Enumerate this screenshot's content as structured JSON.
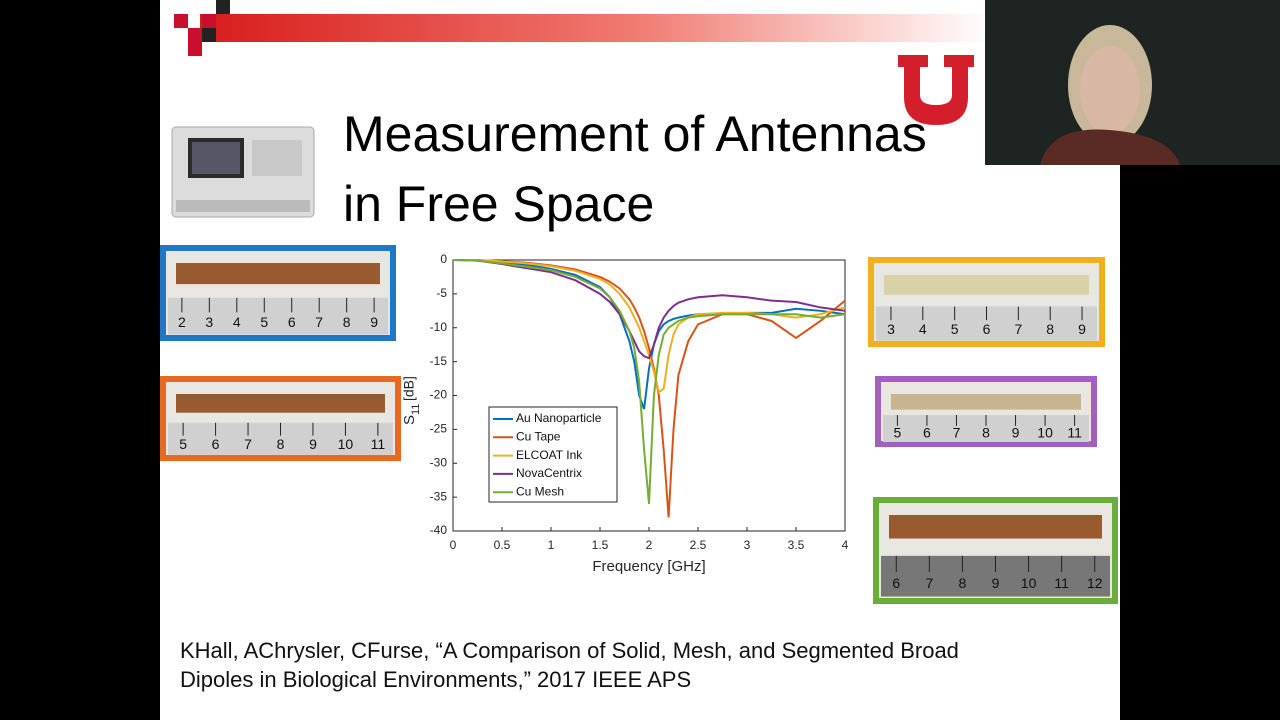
{
  "slide": {
    "title_lines": [
      "Measurement of Antennas",
      "in Free Space"
    ],
    "citation_lines": [
      "KHall, AChrysler, CFurse, “A Comparison of Solid, Mesh, and Segmented Broad",
      "Dipoles in Biological Environments,” 2017 IEEE APS"
    ],
    "photos": [
      {
        "color": "#1f77c8",
        "ruler": [
          "2",
          "3",
          "4",
          "5",
          "6",
          "7",
          "8",
          "9"
        ]
      },
      {
        "color": "#e86a1e",
        "ruler": [
          "5",
          "6",
          "7",
          "8",
          "9",
          "10",
          "11"
        ]
      },
      {
        "color": "#f2b01e",
        "ruler": [
          "3",
          "4",
          "5",
          "6",
          "7",
          "8",
          "9"
        ]
      },
      {
        "color": "#a35fc0",
        "ruler": [
          "5",
          "6",
          "7",
          "8",
          "9",
          "10",
          "11"
        ]
      },
      {
        "color": "#6aae3a",
        "ruler": [
          "6",
          "7",
          "8",
          "9",
          "10",
          "11",
          "12"
        ]
      }
    ]
  },
  "chart_data": {
    "type": "line",
    "xlabel": "Frequency [GHz]",
    "ylabel_parts": [
      "S",
      "11",
      "[dB]"
    ],
    "x": [
      0,
      0.25,
      0.5,
      0.75,
      1,
      1.25,
      1.5,
      1.6,
      1.7,
      1.8,
      1.85,
      1.9,
      1.95,
      2,
      2.05,
      2.1,
      2.15,
      2.2,
      2.25,
      2.3,
      2.4,
      2.5,
      2.75,
      3,
      3.25,
      3.5,
      3.75,
      4
    ],
    "series": [
      {
        "name": "Au Nanoparticle",
        "color": "#0072bd",
        "values": [
          0,
          0,
          -0.3,
          -0.7,
          -1.3,
          -2.2,
          -4,
          -5.5,
          -8,
          -12,
          -15,
          -20,
          -22,
          -16,
          -12.5,
          -10.5,
          -9.5,
          -9,
          -8.7,
          -8.5,
          -8.2,
          -8,
          -8,
          -7.8,
          -7.8,
          -7.2,
          -7.5,
          -8
        ]
      },
      {
        "name": "Cu Tape",
        "color": "#d95319",
        "values": [
          0,
          0,
          -0.2,
          -0.4,
          -0.8,
          -1.4,
          -2.5,
          -3.2,
          -4.2,
          -5.8,
          -7,
          -8.5,
          -10.5,
          -13,
          -16,
          -20,
          -28,
          -38,
          -25,
          -17,
          -12,
          -9.5,
          -8,
          -8,
          -9,
          -11.5,
          -9,
          -6
        ]
      },
      {
        "name": "ELCOAT Ink",
        "color": "#edb120",
        "values": [
          0,
          0,
          -0.2,
          -0.5,
          -0.9,
          -1.6,
          -2.8,
          -3.6,
          -5,
          -7,
          -8.5,
          -10,
          -12,
          -14,
          -16.5,
          -19.5,
          -19,
          -14,
          -11,
          -9.5,
          -8.5,
          -8,
          -7.8,
          -7.8,
          -8,
          -8.5,
          -8,
          -7
        ]
      },
      {
        "name": "NovaCentrix",
        "color": "#7e2f8e",
        "values": [
          0,
          -0.1,
          -0.6,
          -1.2,
          -1.8,
          -3,
          -5,
          -6.2,
          -8,
          -10.5,
          -12,
          -13.5,
          -14.2,
          -14.5,
          -12.5,
          -10,
          -8.5,
          -7.5,
          -6.8,
          -6.3,
          -5.8,
          -5.5,
          -5.2,
          -5.5,
          -6,
          -6.2,
          -7,
          -7.5
        ]
      },
      {
        "name": "Cu Mesh",
        "color": "#77ac30",
        "values": [
          0,
          -0.1,
          -0.5,
          -1,
          -1.5,
          -2.5,
          -4.2,
          -5.5,
          -7.5,
          -10.5,
          -13,
          -18,
          -28,
          -36,
          -20,
          -14,
          -11,
          -10,
          -9.5,
          -9,
          -8.5,
          -8.3,
          -8,
          -8,
          -8,
          -8,
          -8.5,
          -8
        ]
      }
    ],
    "xlim": [
      0,
      4
    ],
    "xticks": [
      0,
      0.5,
      1,
      1.5,
      2,
      2.5,
      3,
      3.5,
      4
    ],
    "ylim": [
      -40,
      0
    ],
    "yticks": [
      0,
      -5,
      -10,
      -15,
      -20,
      -25,
      -30,
      -35,
      -40
    ]
  }
}
